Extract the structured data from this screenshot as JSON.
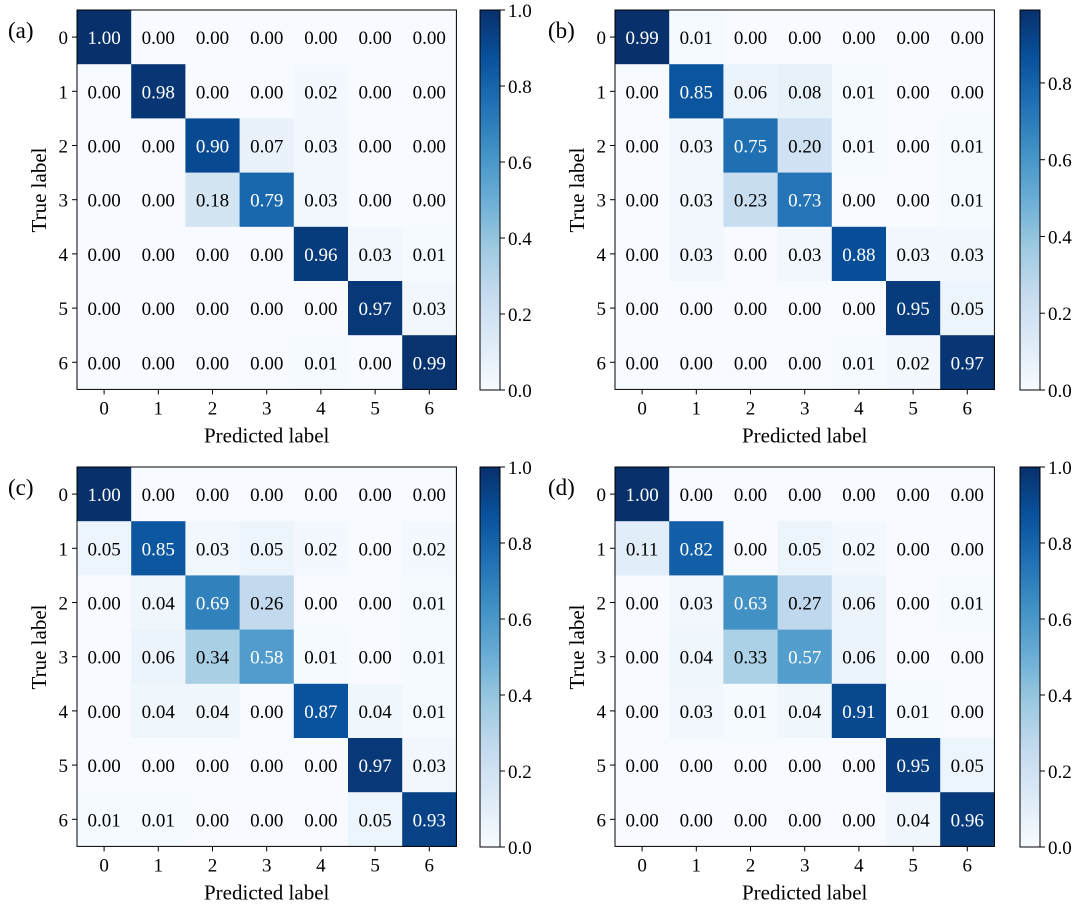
{
  "chart_data": [
    {
      "type": "heatmap",
      "panel_label": "(a)",
      "xlabel": "Predicted label",
      "ylabel": "True label",
      "x_ticks": [
        "0",
        "1",
        "2",
        "3",
        "4",
        "5",
        "6"
      ],
      "y_ticks": [
        "0",
        "1",
        "2",
        "3",
        "4",
        "5",
        "6"
      ],
      "colorbar": {
        "range": [
          0,
          1.0
        ],
        "ticks": [
          "0.0",
          "0.2",
          "0.4",
          "0.6",
          "0.8",
          "1.0"
        ],
        "colormap": "Blues"
      },
      "values": [
        [
          1.0,
          0.0,
          0.0,
          0.0,
          0.0,
          0.0,
          0.0
        ],
        [
          0.0,
          0.98,
          0.0,
          0.0,
          0.02,
          0.0,
          0.0
        ],
        [
          0.0,
          0.0,
          0.9,
          0.07,
          0.03,
          0.0,
          0.0
        ],
        [
          0.0,
          0.0,
          0.18,
          0.79,
          0.03,
          0.0,
          0.0
        ],
        [
          0.0,
          0.0,
          0.0,
          0.0,
          0.96,
          0.03,
          0.01
        ],
        [
          0.0,
          0.0,
          0.0,
          0.0,
          0.0,
          0.97,
          0.03
        ],
        [
          0.0,
          0.0,
          0.0,
          0.0,
          0.01,
          0.0,
          0.99
        ]
      ]
    },
    {
      "type": "heatmap",
      "panel_label": "(b)",
      "xlabel": "Predicted label",
      "ylabel": "True label",
      "x_ticks": [
        "0",
        "1",
        "2",
        "3",
        "4",
        "5",
        "6"
      ],
      "y_ticks": [
        "0",
        "1",
        "2",
        "3",
        "4",
        "5",
        "6"
      ],
      "colorbar": {
        "range": [
          0,
          0.99
        ],
        "ticks": [
          "0.0",
          "0.2",
          "0.4",
          "0.6",
          "0.8"
        ],
        "colormap": "Blues"
      },
      "values": [
        [
          0.99,
          0.01,
          0.0,
          0.0,
          0.0,
          0.0,
          0.0
        ],
        [
          0.0,
          0.85,
          0.06,
          0.08,
          0.01,
          0.0,
          0.0
        ],
        [
          0.0,
          0.03,
          0.75,
          0.2,
          0.01,
          0.0,
          0.01
        ],
        [
          0.0,
          0.03,
          0.23,
          0.73,
          0.0,
          0.0,
          0.01
        ],
        [
          0.0,
          0.03,
          0.0,
          0.03,
          0.88,
          0.03,
          0.03
        ],
        [
          0.0,
          0.0,
          0.0,
          0.0,
          0.0,
          0.95,
          0.05
        ],
        [
          0.0,
          0.0,
          0.0,
          0.0,
          0.01,
          0.02,
          0.97
        ]
      ]
    },
    {
      "type": "heatmap",
      "panel_label": "(c)",
      "xlabel": "Predicted label",
      "ylabel": "True label",
      "x_ticks": [
        "0",
        "1",
        "2",
        "3",
        "4",
        "5",
        "6"
      ],
      "y_ticks": [
        "0",
        "1",
        "2",
        "3",
        "4",
        "5",
        "6"
      ],
      "colorbar": {
        "range": [
          0,
          1.0
        ],
        "ticks": [
          "0.0",
          "0.2",
          "0.4",
          "0.6",
          "0.8",
          "1.0"
        ],
        "colormap": "Blues"
      },
      "values": [
        [
          1.0,
          0.0,
          0.0,
          0.0,
          0.0,
          0.0,
          0.0
        ],
        [
          0.05,
          0.85,
          0.03,
          0.05,
          0.02,
          0.0,
          0.02
        ],
        [
          0.0,
          0.04,
          0.69,
          0.26,
          0.0,
          0.0,
          0.01
        ],
        [
          0.0,
          0.06,
          0.34,
          0.58,
          0.01,
          0.0,
          0.01
        ],
        [
          0.0,
          0.04,
          0.04,
          0.0,
          0.87,
          0.04,
          0.01
        ],
        [
          0.0,
          0.0,
          0.0,
          0.0,
          0.0,
          0.97,
          0.03
        ],
        [
          0.01,
          0.01,
          0.0,
          0.0,
          0.0,
          0.05,
          0.93
        ]
      ]
    },
    {
      "type": "heatmap",
      "panel_label": "(d)",
      "xlabel": "Predicted label",
      "ylabel": "True label",
      "x_ticks": [
        "0",
        "1",
        "2",
        "3",
        "4",
        "5",
        "6"
      ],
      "y_ticks": [
        "0",
        "1",
        "2",
        "3",
        "4",
        "5",
        "6"
      ],
      "colorbar": {
        "range": [
          0,
          1.0
        ],
        "ticks": [
          "0.0",
          "0.2",
          "0.4",
          "0.6",
          "0.8",
          "1.0"
        ],
        "colormap": "Blues"
      },
      "values": [
        [
          1.0,
          0.0,
          0.0,
          0.0,
          0.0,
          0.0,
          0.0
        ],
        [
          0.11,
          0.82,
          0.0,
          0.05,
          0.02,
          0.0,
          0.0
        ],
        [
          0.0,
          0.03,
          0.63,
          0.27,
          0.06,
          0.0,
          0.01
        ],
        [
          0.0,
          0.04,
          0.33,
          0.57,
          0.06,
          0.0,
          0.0
        ],
        [
          0.0,
          0.03,
          0.01,
          0.04,
          0.91,
          0.01,
          0.0
        ],
        [
          0.0,
          0.0,
          0.0,
          0.0,
          0.0,
          0.95,
          0.05
        ],
        [
          0.0,
          0.0,
          0.0,
          0.0,
          0.0,
          0.04,
          0.96
        ]
      ]
    }
  ]
}
